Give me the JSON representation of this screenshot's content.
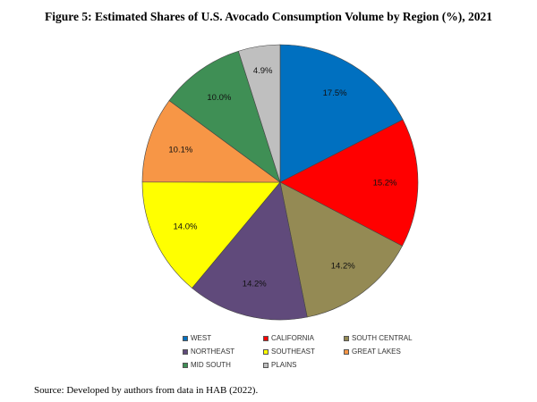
{
  "chart_data": {
    "type": "pie",
    "title": "Figure 5: Estimated Shares of U.S. Avocado Consumption Volume by Region (%), 2021",
    "categories": [
      "WEST",
      "CALIFORNIA",
      "SOUTH CENTRAL",
      "NORTHEAST",
      "SOUTHEAST",
      "GREAT LAKES",
      "MID SOUTH",
      "PLAINS"
    ],
    "values": [
      17.5,
      15.2,
      14.2,
      14.2,
      14.0,
      10.1,
      10.0,
      4.9
    ],
    "labels": [
      "17.5%",
      "15.2%",
      "14.2%",
      "14.2%",
      "14.0%",
      "10.1%",
      "10.0%",
      "4.9%"
    ],
    "colors": [
      "#0070C0",
      "#FF0000",
      "#948A54",
      "#604A7B",
      "#FFFF00",
      "#F79646",
      "#3F8F55",
      "#BFBFBF"
    ],
    "start": "top, clockwise",
    "legend_position": "bottom"
  },
  "source": "Source: Developed by authors from data in HAB (2022)."
}
